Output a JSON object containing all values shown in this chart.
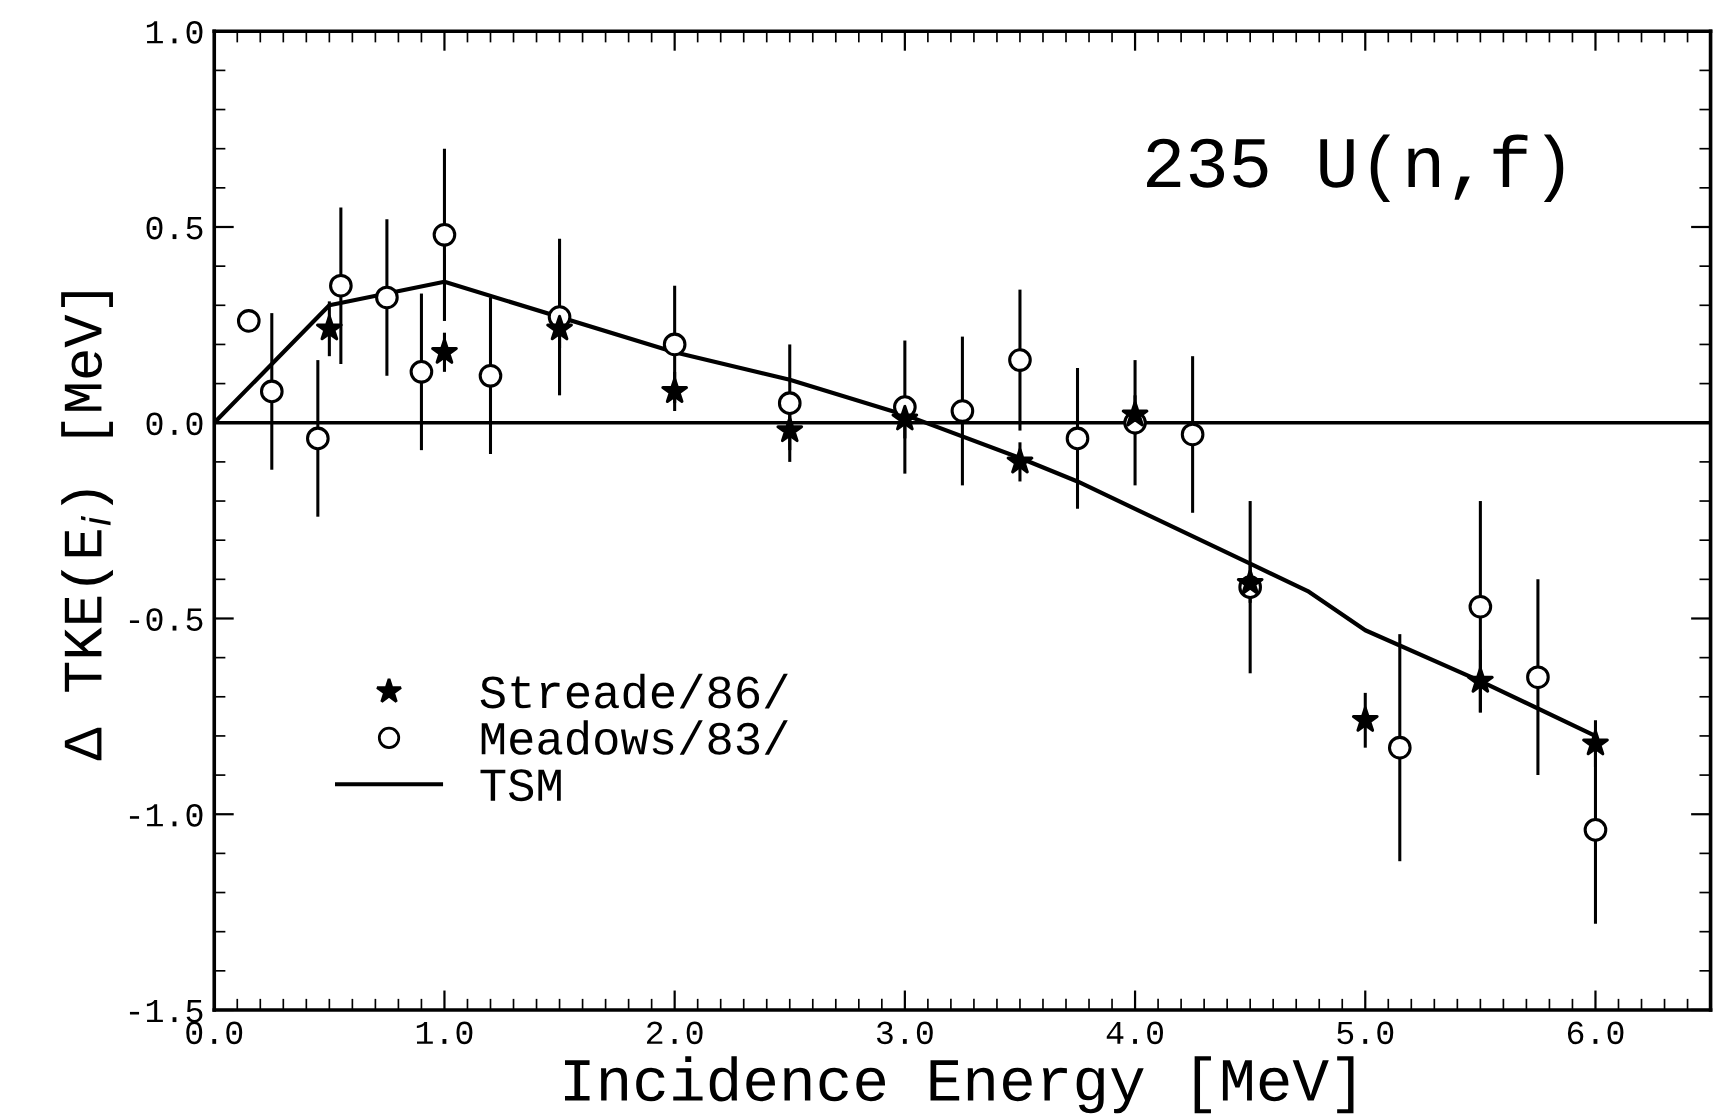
{
  "chart_data": {
    "type": "scatter",
    "xlabel": "Incidence Energy [MeV]",
    "ylabel": "Δ TKE(E$_{i}$) [MeV]",
    "annotations": [
      "235 U(n,f)"
    ],
    "xlim": [
      0.0,
      6.5
    ],
    "ylim": [
      -1.5,
      1.0
    ],
    "xticks": [
      {
        "value": 0,
        "label": "0.0"
      },
      {
        "value": 1,
        "label": "1.0"
      },
      {
        "value": 2,
        "label": "2.0"
      },
      {
        "value": 3,
        "label": "3.0"
      },
      {
        "value": 4,
        "label": "4.0"
      },
      {
        "value": 5,
        "label": "5.0"
      },
      {
        "value": 6,
        "label": "6.0"
      }
    ],
    "yticks": [
      {
        "value": -1.5,
        "label": "-1.5"
      },
      {
        "value": -1.0,
        "label": "-1.0"
      },
      {
        "value": -0.5,
        "label": "-0.5"
      },
      {
        "value": 0,
        "label": "0.0"
      },
      {
        "value": 0.5,
        "label": "0.5"
      },
      {
        "value": 1.0,
        "label": "1.0"
      }
    ],
    "ref_lines": [
      {
        "axis": "y",
        "value": 0,
        "color": "#000000"
      }
    ],
    "legend": "bottom left",
    "grid": false,
    "series": [
      {
        "name": "Streade/86/",
        "marker": "star",
        "color": "#000000",
        "x": [
          0.5,
          1.0,
          1.5,
          2.0,
          2.5,
          3.0,
          3.5,
          4.0,
          4.5,
          5.0,
          5.5,
          6.0
        ],
        "values": [
          0.24,
          0.18,
          0.24,
          0.08,
          -0.02,
          0.01,
          -0.1,
          0.02,
          -0.41,
          -0.76,
          -0.66,
          -0.82
        ],
        "errors": [
          0.07,
          0.05,
          0.05,
          0.05,
          0.05,
          0.05,
          0.05,
          0.05,
          0.05,
          0.07,
          0.08,
          0.06
        ]
      },
      {
        "name": "Meadows/83/",
        "marker": "circle",
        "color": "#000000",
        "x": [
          0.15,
          0.25,
          0.45,
          0.55,
          0.75,
          0.9,
          1.0,
          1.2,
          1.5,
          2.0,
          2.5,
          3.0,
          3.25,
          3.5,
          3.75,
          4.0,
          4.25,
          4.5,
          5.15,
          5.5,
          5.75,
          6.0
        ],
        "values": [
          0.26,
          0.08,
          -0.04,
          0.35,
          0.32,
          0.13,
          0.48,
          0.12,
          0.27,
          0.2,
          0.05,
          0.04,
          0.03,
          0.16,
          -0.04,
          0.0,
          -0.03,
          -0.42,
          -0.83,
          -0.47,
          -0.65,
          -1.04
        ],
        "errors": [
          null,
          0.2,
          0.2,
          0.2,
          0.2,
          0.2,
          0.22,
          0.2,
          0.2,
          0.15,
          0.15,
          0.17,
          0.19,
          0.18,
          0.18,
          0.16,
          0.2,
          0.22,
          0.29,
          0.27,
          0.25,
          0.24
        ]
      },
      {
        "name": "TSM",
        "type": "line",
        "marker": "none",
        "line_style": "solid",
        "color": "#000000",
        "x": [
          0,
          0.5,
          1.0,
          2.0,
          2.5,
          3.0,
          3.5,
          3.75,
          4.5,
          4.75,
          5.0,
          5.5,
          6.0
        ],
        "values": [
          0,
          0.3,
          0.36,
          0.18,
          0.11,
          0.02,
          -0.09,
          -0.15,
          -0.36,
          -0.43,
          -0.53,
          -0.66,
          -0.8
        ]
      }
    ]
  }
}
